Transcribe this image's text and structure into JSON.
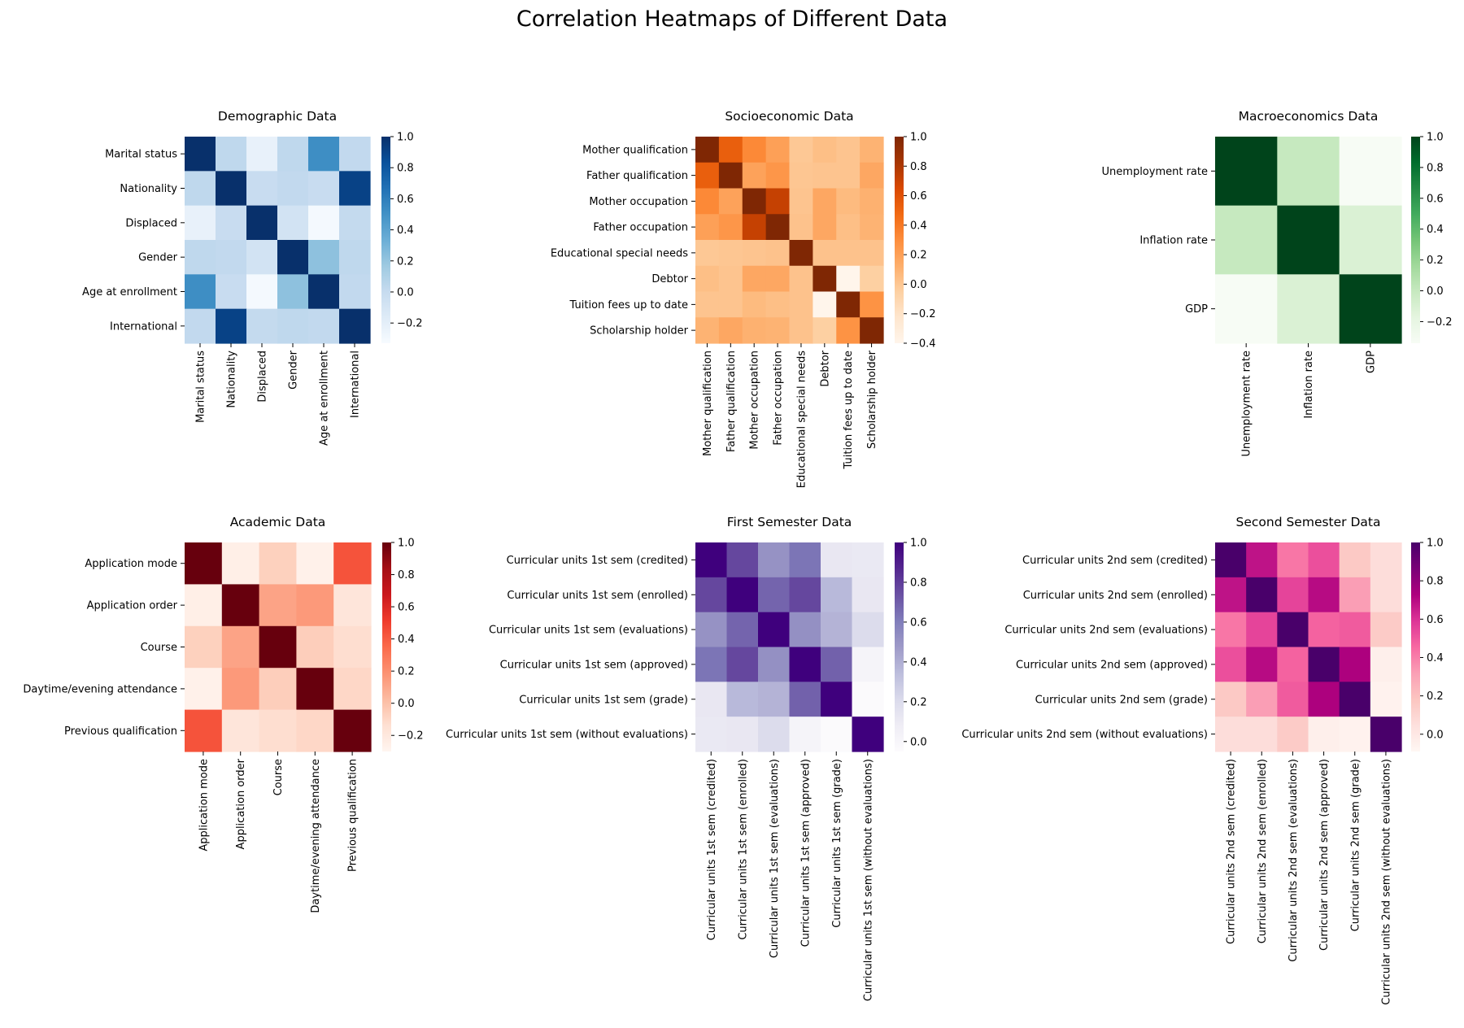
{
  "figure": {
    "suptitle": "Correlation Heatmaps of Different Data"
  },
  "chart_data": [
    {
      "type": "heatmap",
      "title": "Demographic Data",
      "colormap": "Blues",
      "colormap_stops": [
        "#f7fbff",
        "#deebf7",
        "#c6dbef",
        "#9ecae1",
        "#6baed6",
        "#4292c6",
        "#2171b5",
        "#08519c",
        "#08306b"
      ],
      "vmin": -0.33,
      "vmax": 1.0,
      "colorbar_ticks": [
        "1.0",
        "0.8",
        "0.6",
        "0.4",
        "0.2",
        "0.0",
        "−0.2"
      ],
      "colorbar_tick_values": [
        1.0,
        0.8,
        0.6,
        0.4,
        0.2,
        0.0,
        -0.2
      ],
      "labels": [
        "Marital status",
        "Nationality",
        "Displaced",
        "Gender",
        "Age at enrollment",
        "International"
      ],
      "values": [
        [
          1.0,
          0.03,
          -0.23,
          0.03,
          0.52,
          0.02
        ],
        [
          0.03,
          1.0,
          -0.01,
          0.02,
          -0.01,
          0.91
        ],
        [
          -0.23,
          -0.01,
          1.0,
          -0.08,
          -0.31,
          0.01
        ],
        [
          0.03,
          0.02,
          -0.08,
          1.0,
          0.22,
          0.03
        ],
        [
          0.52,
          -0.01,
          -0.31,
          0.22,
          1.0,
          0.02
        ],
        [
          0.02,
          0.91,
          0.01,
          0.03,
          0.02,
          1.0
        ]
      ]
    },
    {
      "type": "heatmap",
      "title": "Socioeconomic Data",
      "colormap": "Oranges",
      "colormap_stops": [
        "#fff5eb",
        "#fee6ce",
        "#fdd0a2",
        "#fdae6b",
        "#fd8d3c",
        "#f16913",
        "#d94801",
        "#a63603",
        "#7f2704"
      ],
      "vmin": -0.4,
      "vmax": 1.0,
      "colorbar_ticks": [
        "1.0",
        "0.8",
        "0.6",
        "0.4",
        "0.2",
        "0.0",
        "−0.2",
        "−0.4"
      ],
      "colorbar_tick_values": [
        1.0,
        0.8,
        0.6,
        0.4,
        0.2,
        0.0,
        -0.2,
        -0.4
      ],
      "labels": [
        "Mother qualification",
        "Father qualification",
        "Mother occupation",
        "Father occupation",
        "Educational special needs",
        "Debtor",
        "Tuition fees up to date",
        "Scholarship holder"
      ],
      "values": [
        [
          1.0,
          0.53,
          0.32,
          0.2,
          -0.01,
          0.04,
          0.01,
          0.1
        ],
        [
          0.53,
          1.0,
          0.19,
          0.25,
          0.0,
          0.01,
          0.01,
          0.16
        ],
        [
          0.32,
          0.19,
          1.0,
          0.72,
          0.01,
          0.16,
          0.06,
          0.11
        ],
        [
          0.2,
          0.25,
          0.72,
          1.0,
          0.02,
          0.16,
          0.04,
          0.1
        ],
        [
          -0.01,
          0.0,
          0.01,
          0.02,
          1.0,
          0.02,
          0.02,
          0.02
        ],
        [
          0.04,
          0.01,
          0.16,
          0.16,
          0.02,
          1.0,
          -0.4,
          -0.05
        ],
        [
          0.01,
          0.01,
          0.06,
          0.04,
          0.02,
          -0.4,
          1.0,
          0.27
        ],
        [
          0.1,
          0.16,
          0.11,
          0.1,
          0.02,
          -0.05,
          0.27,
          1.0
        ]
      ]
    },
    {
      "type": "heatmap",
      "title": "Macroeconomics Data",
      "colormap": "Greens",
      "colormap_stops": [
        "#f7fcf5",
        "#e5f5e0",
        "#c7e9c0",
        "#a1d99b",
        "#74c476",
        "#41ab5d",
        "#238b45",
        "#006d2c",
        "#00441b"
      ],
      "vmin": -0.34,
      "vmax": 1.0,
      "colorbar_ticks": [
        "1.0",
        "0.8",
        "0.6",
        "0.4",
        "0.2",
        "0.0",
        "−0.2"
      ],
      "colorbar_tick_values": [
        1.0,
        0.8,
        0.6,
        0.4,
        0.2,
        0.0,
        -0.2
      ],
      "labels": [
        "Unemployment rate",
        "Inflation rate",
        "GDP"
      ],
      "values": [
        [
          1.0,
          -0.0,
          -0.34
        ],
        [
          -0.0,
          1.0,
          -0.11
        ],
        [
          -0.34,
          -0.11,
          1.0
        ]
      ]
    },
    {
      "type": "heatmap",
      "title": "Academic Data",
      "colormap": "Reds",
      "colormap_stops": [
        "#fff5f0",
        "#fee0d2",
        "#fcbba1",
        "#fc9272",
        "#fb6a4a",
        "#ef3b2c",
        "#cb181d",
        "#a50f15",
        "#67000d"
      ],
      "vmin": -0.3,
      "vmax": 1.0,
      "colorbar_ticks": [
        "1.0",
        "0.8",
        "0.6",
        "0.4",
        "0.2",
        "0.0",
        "−0.2"
      ],
      "colorbar_tick_values": [
        1.0,
        0.8,
        0.6,
        0.4,
        0.2,
        0.0,
        -0.2
      ],
      "labels": [
        "Application mode",
        "Application order",
        "Course",
        "Daytime/evening attendance",
        "Previous qualification"
      ],
      "values": [
        [
          1.0,
          -0.25,
          -0.07,
          -0.27,
          0.43
        ],
        [
          -0.25,
          1.0,
          0.12,
          0.16,
          -0.18
        ],
        [
          -0.07,
          0.12,
          1.0,
          -0.06,
          -0.13
        ],
        [
          -0.27,
          0.16,
          -0.06,
          1.0,
          -0.1
        ],
        [
          0.43,
          -0.18,
          -0.13,
          -0.1,
          1.0
        ]
      ]
    },
    {
      "type": "heatmap",
      "title": "First Semester Data",
      "colormap": "Purples",
      "colormap_stops": [
        "#fcfbfd",
        "#efedf5",
        "#dadaeb",
        "#bcbddc",
        "#9e9ac8",
        "#807dba",
        "#6a51a3",
        "#54278f",
        "#3f007d"
      ],
      "vmin": -0.05,
      "vmax": 1.0,
      "colorbar_ticks": [
        "1.0",
        "0.8",
        "0.6",
        "0.4",
        "0.2",
        "0.0"
      ],
      "colorbar_tick_values": [
        1.0,
        0.8,
        0.6,
        0.4,
        0.2,
        0.0
      ],
      "labels": [
        "Curricular units 1st sem (credited)",
        "Curricular units 1st sem (enrolled)",
        "Curricular units 1st sem (evaluations)",
        "Curricular units 1st sem (approved)",
        "Curricular units 1st sem (grade)",
        "Curricular units 1st sem (without evaluations)"
      ],
      "values": [
        [
          1.0,
          0.77,
          0.51,
          0.63,
          0.12,
          0.11
        ],
        [
          0.77,
          1.0,
          0.68,
          0.77,
          0.36,
          0.12
        ],
        [
          0.51,
          0.68,
          1.0,
          0.52,
          0.38,
          0.2
        ],
        [
          0.63,
          0.77,
          0.52,
          1.0,
          0.69,
          0.02
        ],
        [
          0.12,
          0.36,
          0.38,
          0.69,
          1.0,
          -0.04
        ],
        [
          0.11,
          0.12,
          0.2,
          0.02,
          -0.04,
          1.0
        ]
      ]
    },
    {
      "type": "heatmap",
      "title": "Second Semester Data",
      "colormap": "RdPu",
      "colormap_stops": [
        "#fff7f3",
        "#fde0dd",
        "#fcc5c0",
        "#fa9fb5",
        "#f768a1",
        "#dd3497",
        "#ae017e",
        "#7a0177",
        "#49006a"
      ],
      "vmin": -0.09,
      "vmax": 1.0,
      "colorbar_ticks": [
        "1.0",
        "0.8",
        "0.6",
        "0.4",
        "0.2",
        "0.0"
      ],
      "colorbar_tick_values": [
        1.0,
        0.8,
        0.6,
        0.4,
        0.2,
        0.0
      ],
      "labels": [
        "Curricular units 2nd sem (credited)",
        "Curricular units 2nd sem (enrolled)",
        "Curricular units 2nd sem (evaluations)",
        "Curricular units 2nd sem (approved)",
        "Curricular units 2nd sem (grade)",
        "Curricular units 2nd sem (without evaluations)"
      ],
      "values": [
        [
          1.0,
          0.68,
          0.42,
          0.52,
          0.16,
          0.06
        ],
        [
          0.68,
          1.0,
          0.55,
          0.7,
          0.32,
          0.06
        ],
        [
          0.42,
          0.55,
          1.0,
          0.47,
          0.49,
          0.15
        ],
        [
          0.52,
          0.7,
          0.47,
          1.0,
          0.73,
          -0.04
        ],
        [
          0.16,
          0.32,
          0.49,
          0.73,
          1.0,
          -0.06
        ],
        [
          0.06,
          0.06,
          0.15,
          -0.04,
          -0.06,
          1.0
        ]
      ]
    }
  ]
}
